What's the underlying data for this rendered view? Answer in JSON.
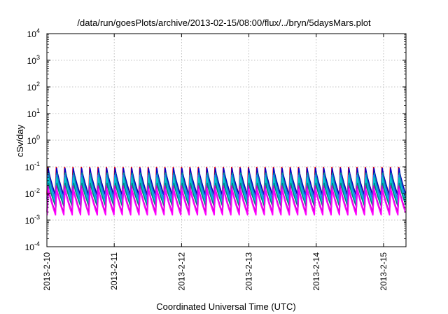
{
  "chart_data": {
    "type": "line",
    "title": "/data/run/goesPlots/archive/2013-02-15/08:00/flux/../bryn/5daysMars.plot",
    "xlabel": "Coordinated Universal Time (UTC)",
    "ylabel": "cSv/day",
    "x_ticks": [
      "2013-2-10",
      "2013-2-11",
      "2013-2-12",
      "2013-2-13",
      "2013-2-14",
      "2013-2-15"
    ],
    "xlim": [
      "2013-02-10 00:00",
      "2013-02-15 08:00"
    ],
    "yscale": "log",
    "ylim": [
      0.0001,
      10000
    ],
    "y_ticks": [
      {
        "base": "10",
        "exp": "-4"
      },
      {
        "base": "10",
        "exp": "-3"
      },
      {
        "base": "10",
        "exp": "-2"
      },
      {
        "base": "10",
        "exp": "-1"
      },
      {
        "base": "10",
        "exp": "0"
      },
      {
        "base": "10",
        "exp": "1"
      },
      {
        "base": "10",
        "exp": "2"
      },
      {
        "base": "10",
        "exp": "3"
      },
      {
        "base": "10",
        "exp": "4"
      }
    ],
    "grid": true,
    "pattern": "sawtooth, roughly 8 cycles per day",
    "cycles_per_day": 8,
    "series": [
      {
        "color": "#ff0000",
        "peak": 0.1,
        "trough": 0.009
      },
      {
        "color": "#0000cc",
        "peak": 0.09,
        "trough": 0.008
      },
      {
        "color": "#009999",
        "peak": 0.06,
        "trough": 0.005
      },
      {
        "color": "#2277ff",
        "peak": 0.05,
        "trough": 0.006
      },
      {
        "color": "#00cccc",
        "peak": 0.04,
        "trough": 0.004
      },
      {
        "color": "#008080",
        "peak": 0.025,
        "trough": 0.003
      },
      {
        "color": "#cc00cc",
        "peak": 0.02,
        "trough": 0.002
      },
      {
        "color": "#ff00ff",
        "peak": 0.015,
        "trough": 0.0015
      }
    ]
  }
}
